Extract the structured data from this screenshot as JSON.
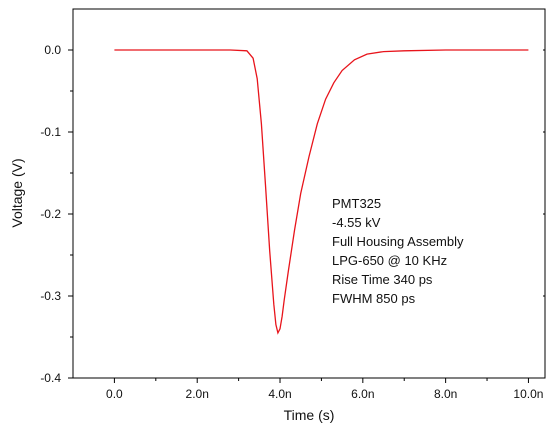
{
  "chart_data": {
    "type": "line",
    "title": "",
    "xlabel": "Time (s)",
    "ylabel": "Voltage (V)",
    "xlim": [
      -1.0,
      10.4
    ],
    "ylim": [
      -0.4,
      0.05
    ],
    "x_ticks": [
      0,
      2,
      4,
      6,
      8,
      10
    ],
    "x_tick_labels": [
      "0.0",
      "2.0n",
      "4.0n",
      "6.0n",
      "8.0n",
      "10.0n"
    ],
    "y_ticks": [
      0.0,
      -0.1,
      -0.2,
      -0.3,
      -0.4
    ],
    "y_tick_labels": [
      "0.0",
      "-0.1",
      "-0.2",
      "-0.3",
      "-0.4"
    ],
    "grid": false,
    "series": [
      {
        "color": "#e8141b",
        "x": [
          0.0,
          1.0,
          2.0,
          2.8,
          3.2,
          3.35,
          3.45,
          3.55,
          3.65,
          3.75,
          3.85,
          3.9,
          3.95,
          4.0,
          4.05,
          4.1,
          4.2,
          4.35,
          4.5,
          4.7,
          4.9,
          5.1,
          5.3,
          5.5,
          5.8,
          6.1,
          6.5,
          7.0,
          8.0,
          9.0,
          10.0
        ],
        "y": [
          0.0,
          0.0,
          0.0,
          0.0,
          -0.001,
          -0.01,
          -0.035,
          -0.09,
          -0.165,
          -0.245,
          -0.31,
          -0.335,
          -0.345,
          -0.34,
          -0.325,
          -0.305,
          -0.27,
          -0.22,
          -0.175,
          -0.13,
          -0.09,
          -0.06,
          -0.04,
          -0.025,
          -0.012,
          -0.005,
          -0.002,
          -0.001,
          0.0,
          0.0,
          0.0
        ]
      }
    ],
    "annotation_lines": [
      "PMT325",
      "-4.55 kV",
      "Full Housing Assembly",
      "LPG-650 @ 10 KHz",
      "Rise Time 340 ps",
      "FWHM 850 ps"
    ]
  }
}
